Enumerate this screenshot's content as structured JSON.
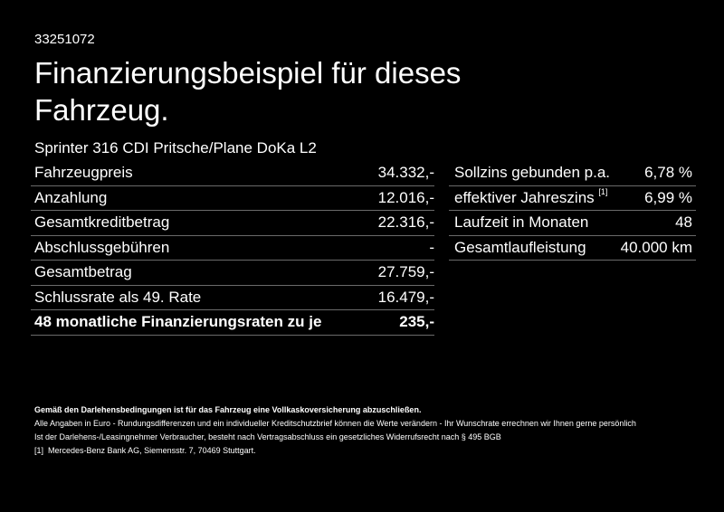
{
  "reference_number": "33251072",
  "title": "Finanzierungsbeispiel für dieses Fahrzeug.",
  "vehicle": "Sprinter 316 CDI Pritsche/Plane DoKa L2",
  "left_table": [
    {
      "label": "Fahrzeugpreis",
      "value": "34.332,-"
    },
    {
      "label": "Anzahlung",
      "value": "12.016,-"
    },
    {
      "label": "Gesamtkreditbetrag",
      "value": "22.316,-"
    },
    {
      "label": "Abschlussgebühren",
      "value": "-"
    },
    {
      "label": "Gesamtbetrag",
      "value": "27.759,-"
    },
    {
      "label": "Schlussrate als 49. Rate",
      "value": "16.479,-"
    },
    {
      "label": "48 monatliche Finanzierungsraten zu je",
      "value": "235,-"
    }
  ],
  "right_table": [
    {
      "label": "Sollzins gebunden p.a.",
      "value": "6,78 %"
    },
    {
      "label": "effektiver Jahreszins",
      "footnote": "[1]",
      "value": "6,99 %"
    },
    {
      "label": "Laufzeit in Monaten",
      "value": "48"
    },
    {
      "label": "Gesamtlaufleistung",
      "value": "40.000 km"
    }
  ],
  "footer": {
    "insurance_note": "Gemäß den Darlehensbedingungen ist für das Fahrzeug eine Vollkaskoversicherung abzuschließen.",
    "disclaimer_line1": "Alle Angaben in Euro - Rundungsdifferenzen und ein individueller Kreditschutzbrief können die Werte verändern - Ihr Wunschrate errechnen wir Ihnen gerne persönlich",
    "disclaimer_line2": "Ist der Darlehens-/Leasingnehmer Verbraucher, besteht nach Vertragsabschluss ein gesetzliches Widerrufsrecht nach § 495 BGB",
    "footnote_marker": "[1]",
    "footnote_text": "Mercedes-Benz Bank AG, Siemensstr. 7, 70469 Stuttgart."
  }
}
